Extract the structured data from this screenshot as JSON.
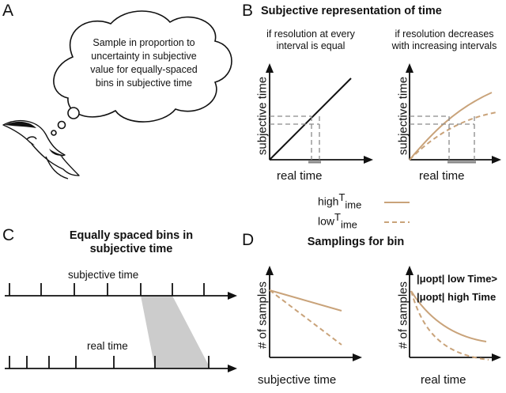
{
  "panelA": {
    "letter": "A",
    "thought_lines": [
      "Sample in proportion to",
      "uncertainty in subjective",
      "value for equally-spaced",
      "bins in subjective time"
    ]
  },
  "panelB": {
    "letter": "B",
    "title": "Subjective representation of time",
    "left_caption_lines": [
      "if resolution at every",
      "interval is equal"
    ],
    "right_caption_lines": [
      "if resolution decreases",
      "with increasing intervals"
    ],
    "ylabel": "subjective time",
    "xlabel": "real time",
    "legend": {
      "high_base": "high",
      "high_sub": "T",
      "high_tail": "ime",
      "low_base": "low",
      "low_sub": "T",
      "low_tail": "ime"
    }
  },
  "panelC": {
    "letter": "C",
    "title_lines": [
      "Equally spaced bins in",
      "subjective time"
    ],
    "top_label": "subjective time",
    "bottom_label": "real time"
  },
  "panelD": {
    "letter": "D",
    "title": "Samplings for bin",
    "ylabel": "# of samples",
    "left_xlabel": "subjective time",
    "right_xlabel": "real time",
    "mu_low": "|μopt| low Time>",
    "mu_high": "|μopt| high Time"
  },
  "colors": {
    "high": "#c9a37a",
    "low": "#c9a37a",
    "guide": "#8a8a8a",
    "shade": "#cccccc"
  }
}
